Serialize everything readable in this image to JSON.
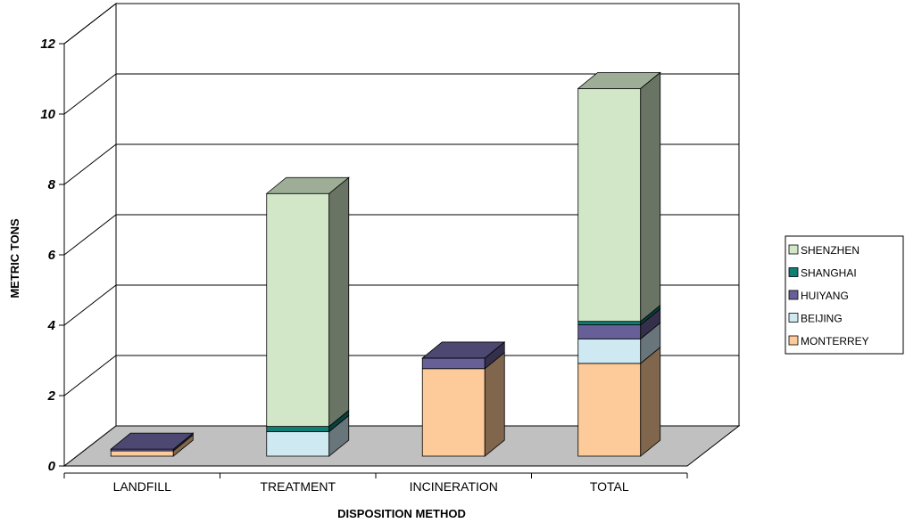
{
  "chart_data": {
    "type": "bar",
    "stacked": true,
    "three_d": true,
    "categories": [
      "LANDFILL",
      "TREATMENT",
      "INCINERATION",
      "TOTAL"
    ],
    "series": [
      {
        "name": "MONTERREY",
        "values": [
          0.15,
          0,
          2.5,
          2.65
        ],
        "color": "#FDCB99"
      },
      {
        "name": "BEIJING",
        "values": [
          0,
          0.7,
          0,
          0.7
        ],
        "color": "#CFE9F3"
      },
      {
        "name": "HUIYANG",
        "values": [
          0.05,
          0,
          0.3,
          0.4
        ],
        "color": "#676098"
      },
      {
        "name": "SHANGHAI",
        "values": [
          0,
          0.15,
          0,
          0.1
        ],
        "color": "#0F7F75"
      },
      {
        "name": "SHENZHEN",
        "values": [
          0,
          6.65,
          0,
          6.65
        ],
        "color": "#D1E7C8"
      }
    ],
    "ylim": [
      0,
      12
    ],
    "yticks": [
      0,
      2,
      4,
      6,
      8,
      10,
      12
    ],
    "xlabel": "DISPOSITION METHOD",
    "ylabel": "METRIC TONS",
    "title": "",
    "grid": true,
    "legend_position": "right",
    "legend_order": [
      "SHENZHEN",
      "SHANGHAI",
      "HUIYANG",
      "BEIJING",
      "MONTERREY"
    ],
    "floor_color": "#C0C0C0"
  }
}
